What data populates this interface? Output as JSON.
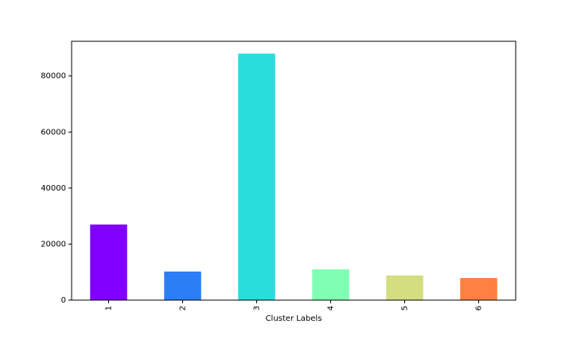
{
  "chart_data": {
    "type": "bar",
    "categories": [
      "1",
      "2",
      "3",
      "4",
      "5",
      "6"
    ],
    "values": [
      27000,
      10200,
      88000,
      11000,
      8800,
      7900
    ],
    "colors": [
      "#8000ff",
      "#2c7ef7",
      "#2adddd",
      "#80ffb4",
      "#d4dd80",
      "#ff8040"
    ],
    "title": "",
    "xlabel": "Cluster Labels",
    "ylabel": "",
    "ylim": [
      0,
      92400
    ],
    "yticks": [
      0,
      20000,
      40000,
      60000,
      80000
    ],
    "ytick_labels": [
      "0",
      "20000",
      "40000",
      "60000",
      "80000"
    ],
    "grid": false,
    "legend": "none"
  }
}
